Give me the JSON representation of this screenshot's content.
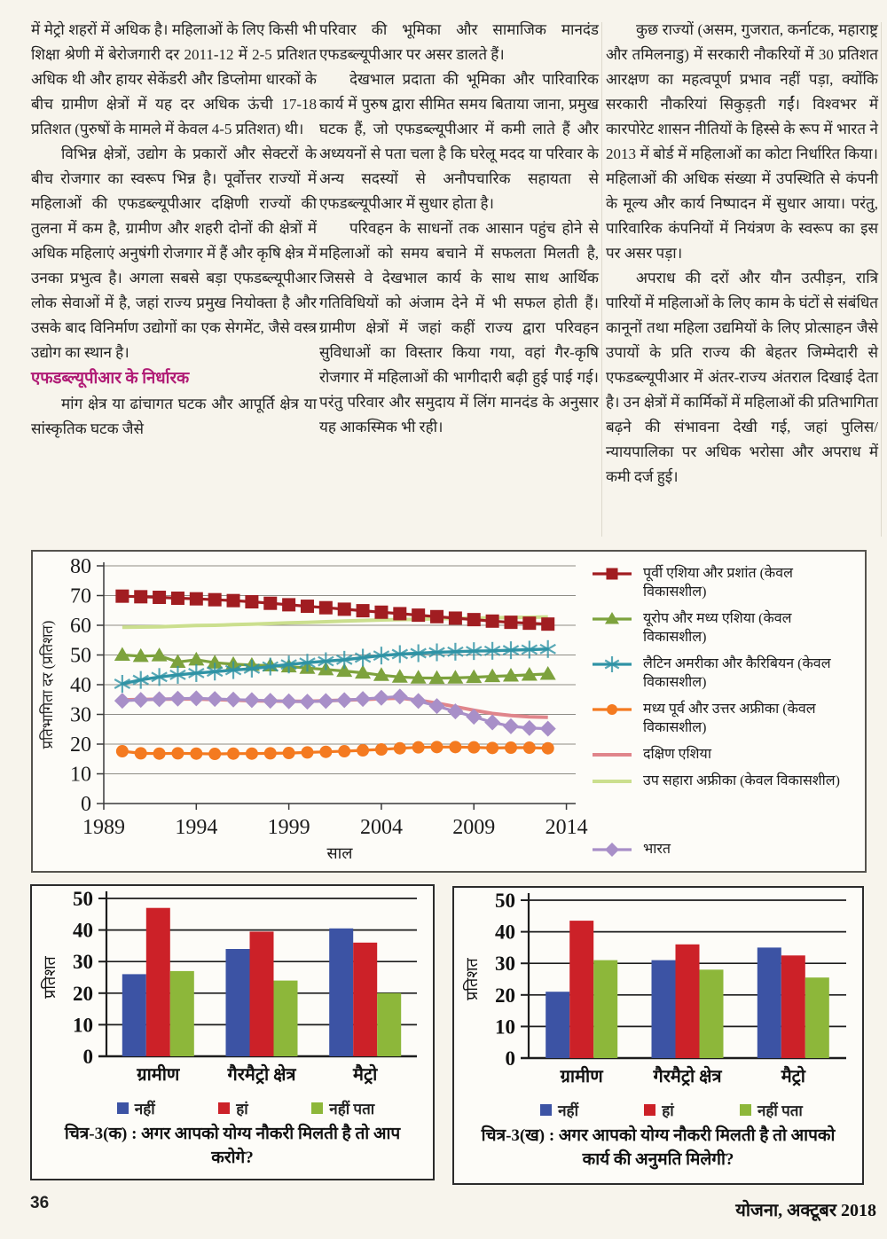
{
  "columns": {
    "col1": {
      "p1": "में मेट्रो शहरों में अधिक है। महिलाओं के लिए किसी भी शिक्षा श्रेणी में बेरोजगारी दर 2011-12 में 2-5 प्रतिशत अधिक थी और हायर सेकेंडरी और डिप्लोमा धारकों के बीच ग्रामीण क्षेत्रों में यह दर अधिक ऊंची 17-18 प्रतिशत (पुरुषों के मामले में केवल 4-5 प्रतिशत) थी।",
      "p2": "विभिन्न क्षेत्रों, उद्योग के प्रकारों और सेक्टरों के बीच रोजगार का स्वरूप भिन्न है। पूर्वोत्तर राज्यों में महिलाओं की एफडब्ल्यूपीआर दक्षिणी राज्यों की तुलना में कम है, ग्रामीण और शहरी दोनों की क्षेत्रों में अधिक महिलाएं अनुषंगी रोजगार में हैं और कृषि क्षेत्र में उनका प्रभुत्व है। अगला सबसे बड़ा एफडब्ल्यूपीआर लोक सेवाओं में है, जहां राज्य प्रमुख नियोक्ता है और उसके बाद विनिर्माण उद्योगों का एक सेगमेंट, जैसे वस्त्र उद्योग का स्थान है।",
      "heading": "एफडब्ल्यूपीआर के निर्धारक",
      "p3": "मांग क्षेत्र या ढांचागत घटक और आपूर्ति क्षेत्र या सांस्कृतिक घटक जैसे"
    },
    "col2": {
      "p1": "परिवार की भूमिका और सामाजिक मानदंड एफडब्ल्यूपीआर पर असर डालते हैं।",
      "p2": "देखभाल प्रदाता की भूमिका और पारिवारिक कार्य में पुरुष द्वारा सीमित समय बिताया जाना, प्रमुख घटक हैं, जो एफडब्ल्यूपीआर में कमी लाते हैं और अध्ययनों से पता चला है कि घरेलू मदद या परिवार के अन्य सदस्यों से अनौपचारिक सहायता से एफडब्ल्यूपीआर में सुधार होता है।",
      "p3": "परिवहन के साधनों तक आसान पहुंच होने से महिलाओं को समय बचाने में सफलता मिलती है, जिससे वे देखभाल कार्य के साथ साथ आर्थिक गतिविधियों को अंजाम देने में भी सफल होती हैं। ग्रामीण क्षेत्रों में जहां कहीं राज्य द्वारा परिवहन सुविधाओं का विस्तार किया गया, वहां गैर-कृषि रोजगार में महिलाओं की भागीदारी बढ़ी हुई पाई गई। परंतु परिवार और समुदाय में लिंग मानदंड के अनुसार यह आकस्मिक भी रही।"
    },
    "col3": {
      "p1": "कुछ राज्यों (असम, गुजरात, कर्नाटक, महाराष्ट्र और तमिलनाडु) में सरकारी नौकरियों में 30 प्रतिशत आरक्षण का महत्वपूर्ण प्रभाव नहीं पड़ा, क्योंकि सरकारी नौकरियां सिकुड़ती गईं। विश्वभर में कारपोरेट शासन नीतियों के हिस्से के रूप में भारत ने 2013 में बोर्ड में महिलाओं का कोटा निर्धारित किया। महिलाओं की अधिक संख्या में उपस्थिति से कंपनी के मूल्य और कार्य निष्पादन में सुधार आया। परंतु, पारिवारिक कंपनियों में नियंत्रण के स्वरूप का इस पर असर पड़ा।",
      "p2": "अपराध की दरों और यौन उत्पीड़न, रात्रि पारियों में महिलाओं के लिए काम के घंटों से संबंधित कानूनों तथा महिला उद्यमियों के लिए प्रोत्साहन जैसे उपायों के प्रति राज्य की बेहतर जिम्मेदारी से एफडब्ल्यूपीआर में अंतर-राज्य अंतराल दिखाई देता है। उन क्षेत्रों में कार्मिकों में महिलाओं की प्रतिभागिता बढ़ने की संभावना देखी गई, जहां पुलिस/न्यायपालिका पर अधिक भरोसा और अपराध में कमी दर्ज हुई।"
    }
  },
  "footer": {
    "page_number": "36",
    "journal": "योजना, अक्टूबर 2018"
  },
  "chart_data": [
    {
      "type": "line",
      "xlabel": "साल",
      "ylabel": "प्रतिभागिता दर (प्रतिशत)",
      "xlim": [
        1989,
        2014.5
      ],
      "ylim": [
        0,
        80
      ],
      "x_ticks": [
        1989,
        1994,
        1999,
        2004,
        2009,
        2014
      ],
      "y_ticks": [
        0,
        10,
        20,
        30,
        40,
        50,
        60,
        70,
        80
      ],
      "grid": true,
      "legend_position": "right",
      "x": [
        1990,
        1991,
        1992,
        1993,
        1994,
        1995,
        1996,
        1997,
        1998,
        1999,
        2000,
        2001,
        2002,
        2003,
        2004,
        2005,
        2006,
        2007,
        2008,
        2009,
        2010,
        2011,
        2012,
        2013
      ],
      "series": [
        {
          "name": "पूर्वी एशिया और प्रशांत (केवल विकासशील)",
          "color": "#a11d21",
          "marker": "square",
          "values": [
            69.8,
            69.6,
            69.4,
            69.1,
            68.9,
            68.6,
            68.3,
            67.9,
            67.4,
            66.9,
            66.4,
            65.9,
            65.4,
            64.9,
            64.4,
            63.9,
            63.4,
            62.9,
            62.4,
            61.9,
            61.4,
            61.0,
            60.7,
            60.4
          ]
        },
        {
          "name": "यूरोप और मध्य एशिया (केवल विकासशील)",
          "color": "#7da23d",
          "marker": "triangle",
          "values": [
            50.0,
            49.6,
            49.8,
            47.6,
            48.4,
            47.4,
            46.9,
            46.6,
            46.4,
            46.1,
            45.6,
            45.1,
            44.6,
            44.0,
            43.2,
            42.6,
            42.3,
            42.2,
            42.3,
            42.5,
            42.8,
            43.0,
            43.3,
            43.6
          ]
        },
        {
          "name": "लैटिन अमरीका और कैरिबियन (केवल विकासशील)",
          "color": "#2f93a5",
          "marker": "asterisk",
          "values": [
            40.3,
            41.6,
            42.6,
            43.3,
            43.9,
            44.4,
            44.9,
            45.4,
            46.1,
            46.8,
            47.4,
            47.9,
            48.4,
            49.1,
            49.8,
            50.3,
            50.6,
            50.9,
            51.1,
            51.3,
            51.4,
            51.6,
            51.8,
            52.0
          ]
        },
        {
          "name": "मध्य पूर्व और उत्तर अफ्रीका (केवल विकासशील)",
          "color": "#f47a20",
          "marker": "circle",
          "values": [
            17.6,
            16.9,
            16.8,
            16.9,
            16.8,
            16.7,
            16.8,
            16.8,
            16.9,
            17.0,
            17.2,
            17.4,
            17.6,
            17.9,
            18.2,
            18.6,
            18.9,
            19.0,
            19.0,
            18.9,
            18.7,
            18.8,
            18.8,
            18.6
          ]
        },
        {
          "name": "दक्षिण एशिया",
          "color": "#e0858b",
          "marker": "none",
          "values": [
            34.9,
            35.0,
            35.1,
            35.2,
            35.2,
            35.0,
            34.8,
            34.6,
            34.5,
            34.4,
            34.4,
            34.6,
            34.8,
            35.0,
            35.3,
            35.5,
            34.8,
            33.8,
            32.6,
            31.4,
            30.3,
            29.6,
            29.2,
            29.0
          ]
        },
        {
          "name": "उप सहारा अफ्रीका (केवल विकासशील)",
          "color": "#cbdf8e",
          "marker": "none",
          "values": [
            59.3,
            59.4,
            59.5,
            59.7,
            59.9,
            60.0,
            60.2,
            60.4,
            60.6,
            60.8,
            61.0,
            61.2,
            61.4,
            61.6,
            61.8,
            61.9,
            62.0,
            62.2,
            62.3,
            62.4,
            62.5,
            62.6,
            62.7,
            62.8
          ]
        },
        {
          "name": "भारत",
          "color": "#a88fc8",
          "marker": "diamond",
          "values": [
            34.6,
            34.9,
            35.1,
            35.3,
            35.4,
            35.2,
            35.0,
            34.8,
            34.6,
            34.4,
            34.3,
            34.5,
            34.8,
            35.2,
            35.6,
            36.0,
            34.5,
            32.8,
            31.0,
            29.2,
            27.3,
            26.0,
            25.4,
            25.2
          ]
        }
      ]
    },
    {
      "type": "bar",
      "caption": "चित्र-3(क) : अगर आपको योग्य नौकरी मिलती है तो आप करोगे?",
      "ylabel": "प्रतिशत",
      "ylim": [
        0,
        50
      ],
      "y_ticks": [
        0,
        10,
        20,
        30,
        40,
        50
      ],
      "grid": true,
      "legend_position": "bottom",
      "categories": [
        "ग्रामीण",
        "गैरमैट्रो क्षेत्र",
        "मैट्रो"
      ],
      "series": [
        {
          "name": "नहीं",
          "color": "#3c53a4",
          "values": [
            26,
            34,
            40.5
          ]
        },
        {
          "name": "हां",
          "color": "#cc2128",
          "values": [
            47,
            39.5,
            36
          ]
        },
        {
          "name": "नहीं पता",
          "color": "#8db73a",
          "values": [
            27,
            24,
            20
          ]
        }
      ]
    },
    {
      "type": "bar",
      "caption": "चित्र-3(ख) : अगर आपको योग्य नौकरी मिलती है तो आपको कार्य की अनुमति मिलेगी?",
      "ylabel": "प्रतिशत",
      "ylim": [
        0,
        50
      ],
      "y_ticks": [
        0,
        10,
        20,
        30,
        40,
        50
      ],
      "grid": true,
      "legend_position": "bottom",
      "categories": [
        "ग्रामीण",
        "गैरमैट्रो क्षेत्र",
        "मैट्रो"
      ],
      "series": [
        {
          "name": "नहीं",
          "color": "#3c53a4",
          "values": [
            21,
            31,
            35
          ]
        },
        {
          "name": "हां",
          "color": "#cc2128",
          "values": [
            43.5,
            36,
            32.5
          ]
        },
        {
          "name": "नहीं पता",
          "color": "#8db73a",
          "values": [
            31,
            28,
            25.5
          ]
        }
      ]
    }
  ]
}
